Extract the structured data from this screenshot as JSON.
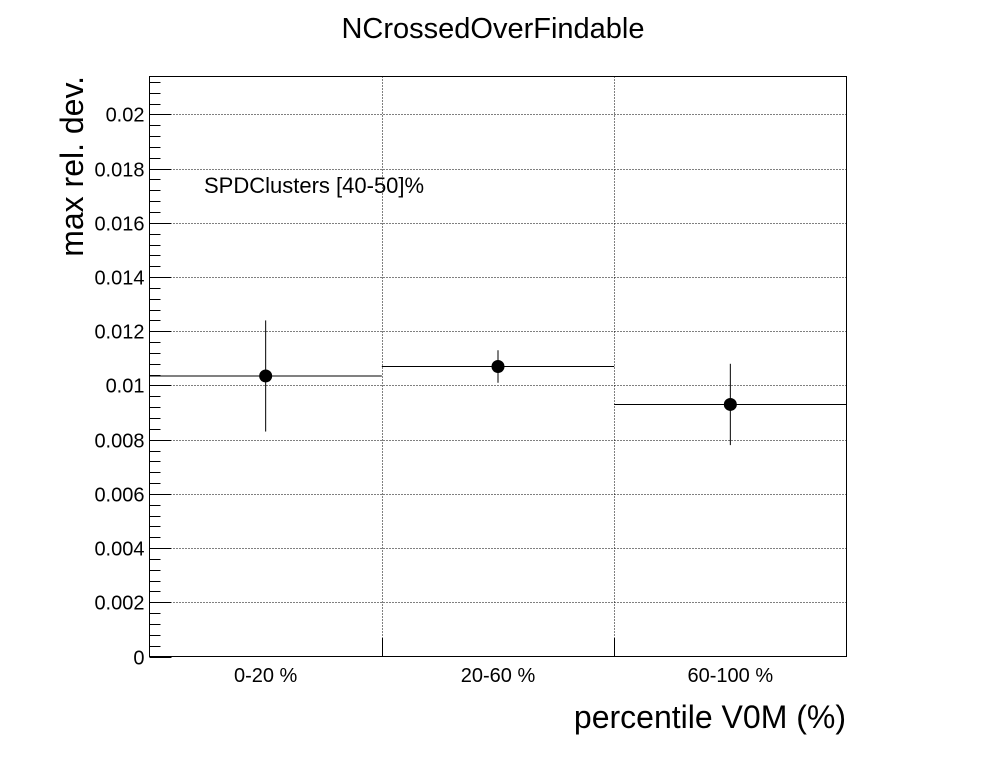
{
  "chart_data": {
    "type": "scatter",
    "title": "NCrossedOverFindable",
    "xlabel": "percentile V0M (%)",
    "ylabel": "max rel. dev.",
    "annotation": "SPDClusters [40-50]%",
    "categories": [
      "0-20 %",
      "20-60 %",
      "60-100 %"
    ],
    "series": [
      {
        "values": [
          0.01035,
          0.0107,
          0.0093
        ],
        "errors": [
          0.00205,
          0.0006,
          0.0015
        ]
      }
    ],
    "ylim": [
      0,
      0.0214
    ],
    "yticks": [
      "0",
      "0.002",
      "0.004",
      "0.006",
      "0.008",
      "0.01",
      "0.012",
      "0.014",
      "0.016",
      "0.018",
      "0.02"
    ],
    "grid": true,
    "legend": "none",
    "colors": {
      "marker": "#000000",
      "grid": "#000000",
      "axis": "#000000"
    }
  }
}
